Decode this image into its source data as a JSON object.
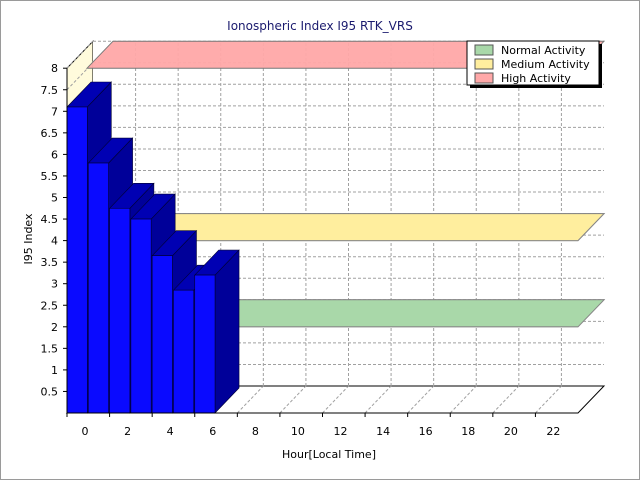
{
  "chart_data": {
    "type": "bar",
    "title": "Ionospheric Index I95 RTK_VRS",
    "xlabel": "Hour[Local Time]",
    "ylabel": "I95 Index",
    "x_ticks": [
      "0",
      "2",
      "4",
      "6",
      "8",
      "10",
      "12",
      "14",
      "16",
      "18",
      "20",
      "22"
    ],
    "y_ticks": [
      "0.5",
      "1",
      "1.5",
      "2",
      "2.5",
      "3",
      "3.5",
      "4",
      "4.5",
      "5",
      "5.5",
      "6",
      "6.5",
      "7",
      "7.5",
      "8"
    ],
    "x": [
      0,
      1,
      2,
      3,
      4,
      5,
      6
    ],
    "values": [
      7.1,
      5.8,
      4.75,
      4.5,
      3.65,
      2.85,
      3.2
    ],
    "xlim": [
      0,
      24
    ],
    "ylim": [
      0,
      8
    ],
    "grid": true,
    "legend_position": "top-right",
    "bands": [
      {
        "name": "Normal Activity",
        "value": 2,
        "color": "#a9d8a9"
      },
      {
        "name": "Medium Activity",
        "value": 4,
        "color": "#ffee9e"
      },
      {
        "name": "High Activity",
        "value": 8,
        "color": "#ffa8a8"
      }
    ],
    "bar_color": "#0a0aff",
    "bar_side_color": "#000099",
    "bar_top_color": "#0000b3"
  }
}
